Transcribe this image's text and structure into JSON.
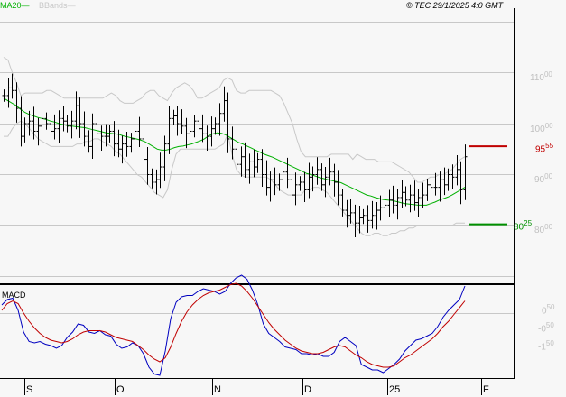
{
  "legend": {
    "ma_label": "MA20",
    "bbands_label": "BBands"
  },
  "copyright": "© TEC 29/1/2025 4:0 GMT",
  "macd_title": "MACD",
  "colors": {
    "bars": "#000000",
    "ma20": "#00b000",
    "bbands": "#c8c8c8",
    "macd": "#0000c0",
    "signal": "#c00000",
    "resistance": "#c00000",
    "support": "#009000",
    "grid": "#c8c8c8",
    "bg": "#f7f7f7"
  },
  "levels": {
    "resistance": {
      "value": "95",
      "decimals": "55"
    },
    "support": {
      "value": "80",
      "decimals": "25"
    }
  },
  "chart_data": [
    {
      "type": "ohlc",
      "title": "Price with MA20 and Bollinger Bands",
      "y_axis": {
        "ticks": [
          {
            "main": "110",
            "dec": "00"
          },
          {
            "main": "100",
            "dec": "00"
          },
          {
            "main": "90",
            "dec": "00"
          },
          {
            "main": "80",
            "dec": "00"
          }
        ],
        "ylim": [
          68,
          117
        ]
      },
      "x_ticks": [
        "S",
        "O",
        "N",
        "D",
        "25",
        "F"
      ],
      "closes": [
        105.5,
        107,
        106.5,
        103,
        97.5,
        100,
        100.5,
        98.5,
        99.5,
        101,
        100,
        98.5,
        99,
        101,
        100.5,
        99.5,
        100.5,
        103.5,
        100,
        97.5,
        95.5,
        100,
        98,
        97.5,
        97.5,
        98.5,
        96,
        95,
        96,
        95.5,
        97,
        98.5,
        97,
        93,
        90,
        88.5,
        89,
        91.5,
        96,
        101,
        101.5,
        100,
        99.5,
        98,
        98.5,
        100.5,
        99,
        98,
        97.5,
        99,
        100,
        102,
        104.5,
        97,
        95,
        92,
        93.5,
        91,
        92.5,
        91.5,
        93,
        90,
        87.5,
        89,
        88,
        89,
        90.5,
        89,
        86,
        88,
        88.5,
        87,
        89.5,
        90,
        91,
        88,
        89.5,
        90.5,
        88.5,
        86,
        83,
        82,
        82.5,
        80.5,
        81.5,
        82,
        81,
        82,
        83,
        83.5,
        84,
        85,
        84,
        85.5,
        86.5,
        85,
        86,
        84.5,
        85.5,
        86,
        88,
        87.5,
        87.5,
        89,
        88,
        90,
        89.5,
        91,
        87,
        93.5
      ],
      "ma20": [
        105,
        104.5,
        104,
        103.5,
        102.8,
        102.2,
        101.8,
        101.5,
        101.2,
        101,
        100.8,
        100.5,
        100.3,
        100,
        99.8,
        99.6,
        99.5,
        99.4,
        99.3,
        99.2,
        99,
        98.8,
        98.6,
        98.4,
        98.2,
        98.1,
        98,
        97.9,
        97.6,
        97.4,
        97.2,
        97,
        96.8,
        96.5,
        96,
        95.5,
        95,
        94.8,
        94.8,
        95,
        95.3,
        95.5,
        95.6,
        95.8,
        96,
        96.3,
        96.6,
        97,
        97.6,
        98,
        98.2,
        98.1,
        97.8,
        97.3,
        96.8,
        96.3,
        96,
        95.6,
        95.2,
        94.8,
        94.4,
        94,
        93.7,
        93.4,
        93,
        92.6,
        92.2,
        91.8,
        91.4,
        91,
        90.6,
        90.2,
        90,
        89.7,
        89.4,
        89.2,
        89,
        88.8,
        88.6,
        88.4,
        88,
        87.6,
        87.2,
        86.8,
        86.4,
        86,
        85.8,
        85.5,
        85.3,
        85.1,
        85,
        84.9,
        84.7,
        84.5,
        84.3,
        84.2,
        84.1,
        84,
        84,
        84,
        84.3,
        84.6,
        85,
        85.3,
        85.6,
        86,
        86.5,
        87,
        87.5
      ],
      "bb_upper": [
        113,
        112.5,
        110,
        108,
        105.5,
        106,
        106,
        106,
        106,
        106,
        106.5,
        106.5,
        106,
        105.5,
        105,
        105,
        105,
        105,
        105,
        105,
        105,
        105,
        105,
        105,
        105.5,
        106,
        105.5,
        104.5,
        104,
        104,
        104,
        104.5,
        105,
        106,
        106.5,
        106.5,
        105.5,
        105,
        104.5,
        106,
        107,
        107.5,
        108,
        107.5,
        106.5,
        105,
        105,
        105.5,
        106,
        106.5,
        107,
        108.5,
        109,
        108.5,
        106.5,
        106,
        106,
        106.5,
        106.5,
        106.5,
        106.5,
        106.5,
        106.5,
        106,
        105.5,
        104,
        102,
        100,
        97,
        94.5,
        93.5,
        93.5,
        93.5,
        93.5,
        93.5,
        93.5,
        94,
        94,
        94,
        94,
        94,
        93,
        94,
        93.5,
        93,
        93,
        93,
        92.5,
        92.5,
        92.5,
        92.5,
        92,
        91.5,
        91,
        90.5,
        89.5,
        88.5,
        88.5,
        89,
        89.5,
        89.5,
        90,
        90,
        90.5,
        91,
        92,
        93,
        93.5
      ],
      "bb_lower": [
        97.5,
        97.5,
        99,
        100,
        100.5,
        100,
        99,
        98,
        97,
        96.5,
        96,
        95.5,
        95.5,
        95.5,
        95.5,
        95.5,
        95.5,
        96,
        96,
        96.5,
        96.5,
        97,
        97,
        96.5,
        96,
        95.5,
        94.5,
        94,
        93,
        92,
        91,
        90,
        89.5,
        88.5,
        87.5,
        86.5,
        86,
        85.5,
        87,
        91,
        94,
        95,
        95,
        95,
        95,
        95,
        95,
        95,
        95,
        95,
        95.5,
        96,
        98,
        94,
        91,
        90,
        89.5,
        89.5,
        89.5,
        89.5,
        89.5,
        89.5,
        89,
        88,
        87,
        86.5,
        86,
        86,
        86,
        86,
        87,
        87,
        87.5,
        87.5,
        87,
        86.5,
        85.5,
        84.5,
        83.5,
        82.5,
        81.5,
        80.5,
        79.5,
        78.5,
        78,
        78,
        78.5,
        78.5,
        78,
        78,
        78.5,
        78.5,
        79,
        79,
        79.5,
        79.5,
        80,
        80,
        80,
        80,
        80,
        80,
        80,
        80,
        80,
        80.5,
        80.5,
        80.5
      ]
    },
    {
      "type": "line",
      "title": "MACD",
      "y_axis": {
        "ticks": [
          {
            "label": "0",
            "dec": "50"
          },
          {
            "label": "-0",
            "dec": "50"
          },
          {
            "label": "-1",
            "dec": "50"
          }
        ],
        "ylim": [
          -2.6,
          1.6
        ]
      },
      "series": [
        {
          "name": "MACD",
          "values": [
            0.8,
            1.0,
            1.05,
            0.6,
            -0.2,
            -0.55,
            -0.6,
            -0.55,
            -0.65,
            -0.7,
            -0.8,
            -0.7,
            -0.4,
            -0.2,
            0.1,
            0.05,
            -0.2,
            -0.25,
            -0.15,
            -0.3,
            -0.35,
            -0.65,
            -0.8,
            -0.75,
            -0.6,
            -0.7,
            -1.0,
            -1.5,
            -1.75,
            -1.8,
            -0.9,
            0.3,
            0.9,
            1.1,
            1.15,
            1.15,
            1.3,
            1.4,
            1.35,
            1.3,
            1.2,
            1.3,
            1.6,
            1.8,
            1.9,
            1.75,
            1.35,
            0.8,
            0.1,
            -0.25,
            -0.4,
            -0.55,
            -0.75,
            -0.8,
            -0.85,
            -1.0,
            -1.0,
            -1.05,
            -1.0,
            -1.1,
            -1.1,
            -0.95,
            -0.55,
            -0.4,
            -0.55,
            -0.7,
            -1.4,
            -1.5,
            -1.6,
            -1.6,
            -1.7,
            -1.55,
            -1.4,
            -1.2,
            -0.9,
            -0.7,
            -0.5,
            -0.45,
            -0.35,
            -0.25,
            0.0,
            0.35,
            0.6,
            0.8,
            1.0,
            1.5
          ]
        },
        {
          "name": "Signal",
          "values": [
            0.6,
            0.85,
            0.95,
            0.85,
            0.5,
            0.2,
            -0.05,
            -0.25,
            -0.4,
            -0.5,
            -0.55,
            -0.6,
            -0.55,
            -0.45,
            -0.3,
            -0.2,
            -0.15,
            -0.15,
            -0.15,
            -0.2,
            -0.3,
            -0.4,
            -0.45,
            -0.5,
            -0.55,
            -0.7,
            -0.85,
            -1.05,
            -1.2,
            -1.3,
            -1.15,
            -0.75,
            -0.25,
            0.2,
            0.55,
            0.8,
            1.0,
            1.15,
            1.25,
            1.3,
            1.35,
            1.45,
            1.55,
            1.6,
            1.5,
            1.3,
            1.05,
            0.75,
            0.45,
            0.15,
            -0.1,
            -0.3,
            -0.5,
            -0.65,
            -0.8,
            -0.9,
            -0.95,
            -1.0,
            -1.0,
            -0.95,
            -0.85,
            -0.75,
            -0.7,
            -0.75,
            -0.9,
            -1.05,
            -1.15,
            -1.3,
            -1.4,
            -1.45,
            -1.5,
            -1.5,
            -1.45,
            -1.3,
            -1.15,
            -1.05,
            -0.9,
            -0.75,
            -0.6,
            -0.45,
            -0.25,
            0.0,
            0.2,
            0.45,
            0.7,
            0.95
          ]
        }
      ]
    }
  ]
}
